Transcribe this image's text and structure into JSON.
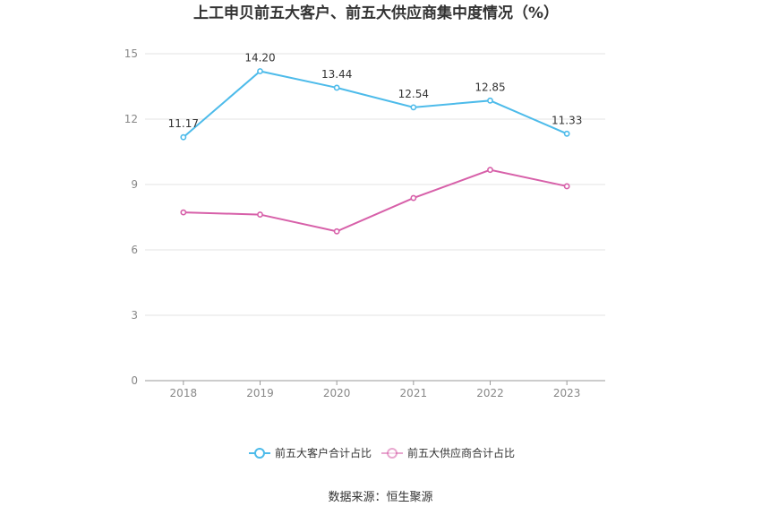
{
  "chart_data": {
    "type": "line",
    "title": "上工申贝前五大客户、前五大供应商集中度情况（%）",
    "categories": [
      "2018",
      "2019",
      "2020",
      "2021",
      "2022",
      "2023"
    ],
    "ylim": [
      0,
      15
    ],
    "yticks": [
      0,
      3,
      6,
      9,
      12,
      15
    ],
    "grid": true,
    "legend_position": "bottom",
    "series": [
      {
        "name": "前五大客户合计占比",
        "color": "#4dbbea",
        "values": [
          11.17,
          14.2,
          13.44,
          12.54,
          12.85,
          11.33
        ],
        "labels": [
          "11.17",
          "14.20",
          "13.44",
          "12.54",
          "12.85",
          "11.33"
        ]
      },
      {
        "name": "前五大供应商合计占比",
        "color": "#d760a9",
        "values": [
          7.72,
          7.62,
          6.85,
          8.38,
          9.67,
          8.92
        ]
      }
    ]
  },
  "source": "数据来源：恒生聚源"
}
